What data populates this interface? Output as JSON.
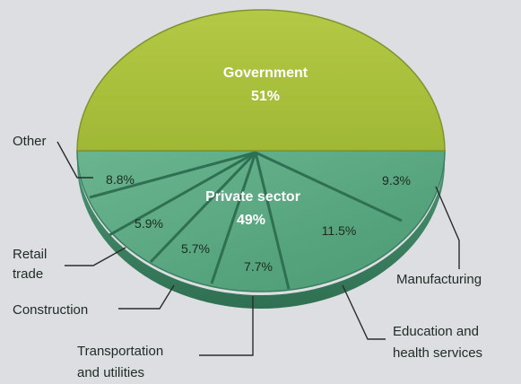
{
  "chart_data": {
    "type": "pie",
    "total_split": [
      {
        "label": "Government",
        "value": 51,
        "value_label": "51%"
      },
      {
        "label": "Private sector",
        "value": 49,
        "value_label": "49%"
      }
    ],
    "private_sector_breakdown": [
      {
        "label": "Other",
        "value": 8.8,
        "value_label": "8.8%"
      },
      {
        "label": "Retail trade",
        "value": 5.9,
        "value_label": "5.9%"
      },
      {
        "label": "Construction",
        "value": 5.7,
        "value_label": "5.7%"
      },
      {
        "label": "Transportation and utilities",
        "value": 7.7,
        "value_label": "7.7%"
      },
      {
        "label": "Education and health services",
        "value": 11.5,
        "value_label": "11.5%"
      },
      {
        "label": "Manufacturing",
        "value": 9.3,
        "value_label": "9.3%"
      }
    ],
    "colors": {
      "government": "#a9c13a",
      "private_sector": "#5aa884",
      "edge": "#3d7f62",
      "government_edge": "#7f9330",
      "background": "#dcdee1"
    }
  },
  "labels": {
    "government_name": "Government",
    "government_pct": "51%",
    "private_name": "Private sector",
    "private_pct": "49%",
    "other": "Other",
    "retail_line1": "Retail",
    "retail_line2": "trade",
    "construction": "Construction",
    "transport_line1": "Transportation",
    "transport_line2": "and utilities",
    "education_line1": "Education and",
    "education_line2": "health services",
    "manufacturing": "Manufacturing",
    "pct_other": "8.8%",
    "pct_retail": "5.9%",
    "pct_construction": "5.7%",
    "pct_transport": "7.7%",
    "pct_education": "11.5%",
    "pct_manufacturing": "9.3%"
  }
}
